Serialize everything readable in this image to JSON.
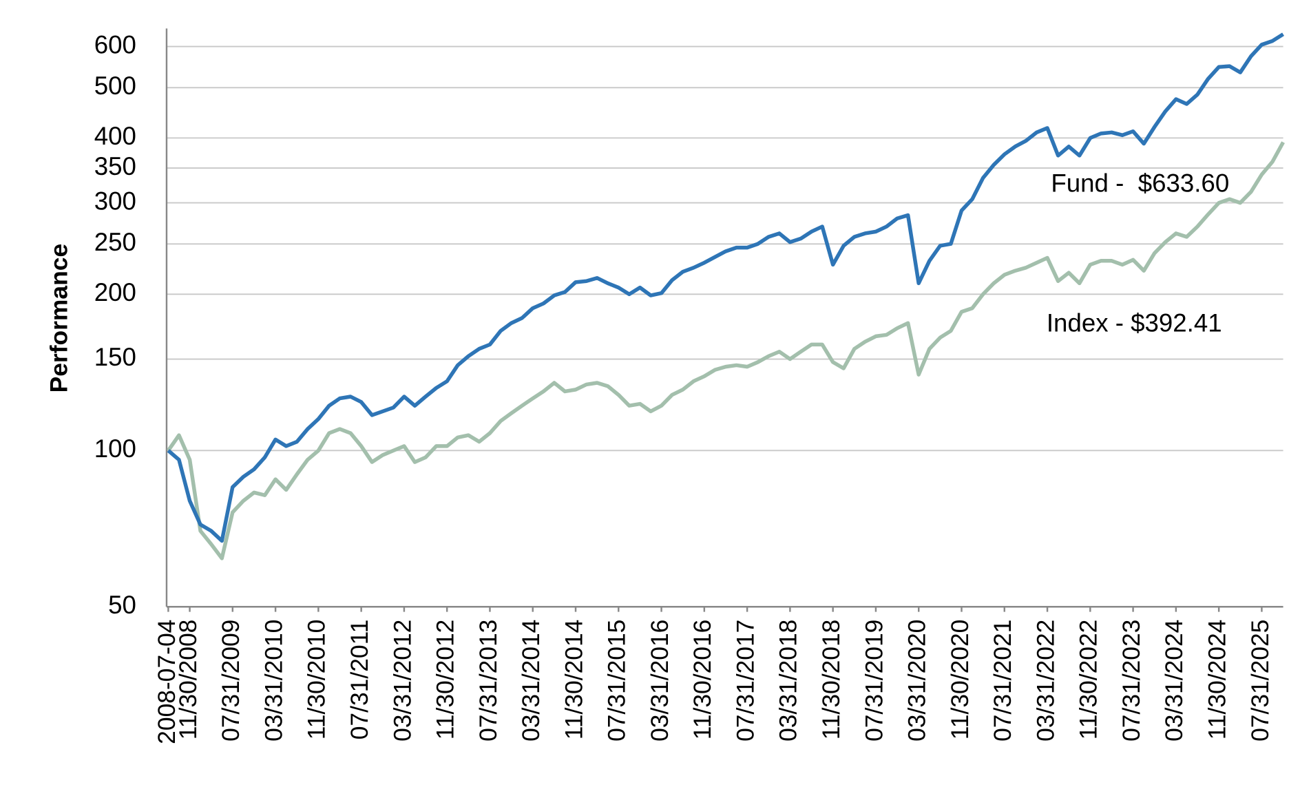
{
  "chart_data": {
    "type": "line",
    "y_label": "Performance",
    "log_scale": true,
    "grid": true,
    "ylim": [
      50,
      650
    ],
    "yticks": [
      50,
      100,
      150,
      200,
      250,
      300,
      350,
      400,
      500,
      600
    ],
    "categories": [
      "2008-07-04",
      null,
      "11/30/2008",
      null,
      null,
      null,
      "07/31/2009",
      null,
      null,
      null,
      "03/31/2010",
      null,
      null,
      null,
      "11/30/2010",
      null,
      null,
      null,
      "07/31/2011",
      null,
      null,
      null,
      "03/31/2012",
      null,
      null,
      null,
      "11/30/2012",
      null,
      null,
      null,
      "07/31/2013",
      null,
      null,
      null,
      "03/31/2014",
      null,
      null,
      null,
      "11/30/2014",
      null,
      null,
      null,
      "07/31/2015",
      null,
      null,
      null,
      "03/31/2016",
      null,
      null,
      null,
      "11/30/2016",
      null,
      null,
      null,
      "07/31/2017",
      null,
      null,
      null,
      "03/31/2018",
      null,
      null,
      null,
      "11/30/2018",
      null,
      null,
      null,
      "07/31/2019",
      null,
      null,
      null,
      "03/31/2020",
      null,
      null,
      null,
      "11/30/2020",
      null,
      null,
      null,
      "07/31/2021",
      null,
      null,
      null,
      "03/31/2022",
      null,
      null,
      null,
      "11/30/2022",
      null,
      null,
      null,
      "07/31/2023",
      null,
      null,
      null,
      "03/31/2024",
      null,
      null,
      null,
      "11/30/2024",
      null,
      null,
      null,
      "07/31/2025",
      null,
      null
    ],
    "series": [
      {
        "color": "#2e75b6",
        "values": [
          100,
          96,
          80,
          72,
          70,
          67,
          85,
          89,
          92,
          97,
          105,
          102,
          104,
          110,
          115,
          122,
          126,
          127,
          124,
          117,
          119,
          121,
          127,
          122,
          127,
          132,
          136,
          146,
          152,
          157,
          160,
          170,
          176,
          180,
          188,
          192,
          199,
          202,
          211,
          212,
          215,
          210,
          206,
          200,
          206,
          199,
          201,
          213,
          221,
          225,
          230,
          236,
          242,
          246,
          246,
          250,
          258,
          262,
          252,
          256,
          264,
          270,
          228,
          248,
          258,
          262,
          264,
          270,
          280,
          284,
          210,
          232,
          248,
          250,
          290,
          305,
          335,
          355,
          372,
          385,
          395,
          410,
          418,
          370,
          385,
          370,
          400,
          408,
          410,
          405,
          412,
          390,
          420,
          450,
          475,
          465,
          485,
          520,
          548,
          550,
          535,
          575,
          605,
          615,
          633.6
        ]
      },
      {
        "color": "#a3bfac",
        "values": [
          100,
          107,
          96,
          70,
          66,
          62,
          76,
          80,
          83,
          82,
          88,
          84,
          90,
          96,
          100,
          108,
          110,
          108,
          102,
          95,
          98,
          100,
          102,
          95,
          97,
          102,
          102,
          106,
          107,
          104,
          108,
          114,
          118,
          122,
          126,
          130,
          135,
          130,
          131,
          134,
          135,
          133,
          128,
          122,
          123,
          119,
          122,
          128,
          131,
          136,
          139,
          143,
          145,
          146,
          145,
          148,
          152,
          155,
          150,
          155,
          160,
          160,
          148,
          144,
          157,
          162,
          166,
          167,
          172,
          176,
          140,
          157,
          165,
          170,
          185,
          188,
          200,
          210,
          218,
          222,
          225,
          230,
          235,
          212,
          220,
          210,
          228,
          232,
          232,
          228,
          233,
          222,
          240,
          252,
          262,
          258,
          270,
          285,
          300,
          305,
          300,
          315,
          340,
          360,
          392.41
        ]
      }
    ],
    "annotations": [
      "Fund -  $633.60",
      "Index - $392.41"
    ]
  }
}
